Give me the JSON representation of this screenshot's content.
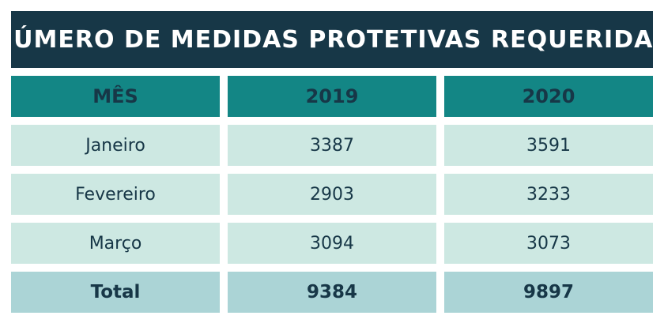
{
  "title": "NÚMERO DE MEDIDAS PROTETIVAS REQUERIDAS",
  "table": {
    "headers": [
      "MÊS",
      "2019",
      "2020"
    ],
    "rows": [
      [
        "Janeiro",
        "3387",
        "3591"
      ],
      [
        "Fevereiro",
        "2903",
        "3233"
      ],
      [
        "Março",
        "3094",
        "3073"
      ]
    ],
    "total": [
      "Total",
      "9384",
      "9897"
    ]
  },
  "colors": {
    "title_background": "#173747",
    "header_background": "#138685",
    "row_background": "#cde8e2",
    "total_background": "#abd4d6",
    "text": "#173747"
  },
  "chart_data": {
    "type": "table",
    "title": "NÚMERO DE MEDIDAS PROTETIVAS REQUERIDAS",
    "columns": [
      "MÊS",
      "2019",
      "2020"
    ],
    "categories": [
      "Janeiro",
      "Fevereiro",
      "Março"
    ],
    "series": [
      {
        "name": "2019",
        "values": [
          3387,
          2903,
          3094
        ]
      },
      {
        "name": "2020",
        "values": [
          3591,
          3233,
          3073
        ]
      }
    ],
    "totals": {
      "label": "Total",
      "values": [
        9384,
        9897
      ]
    }
  }
}
